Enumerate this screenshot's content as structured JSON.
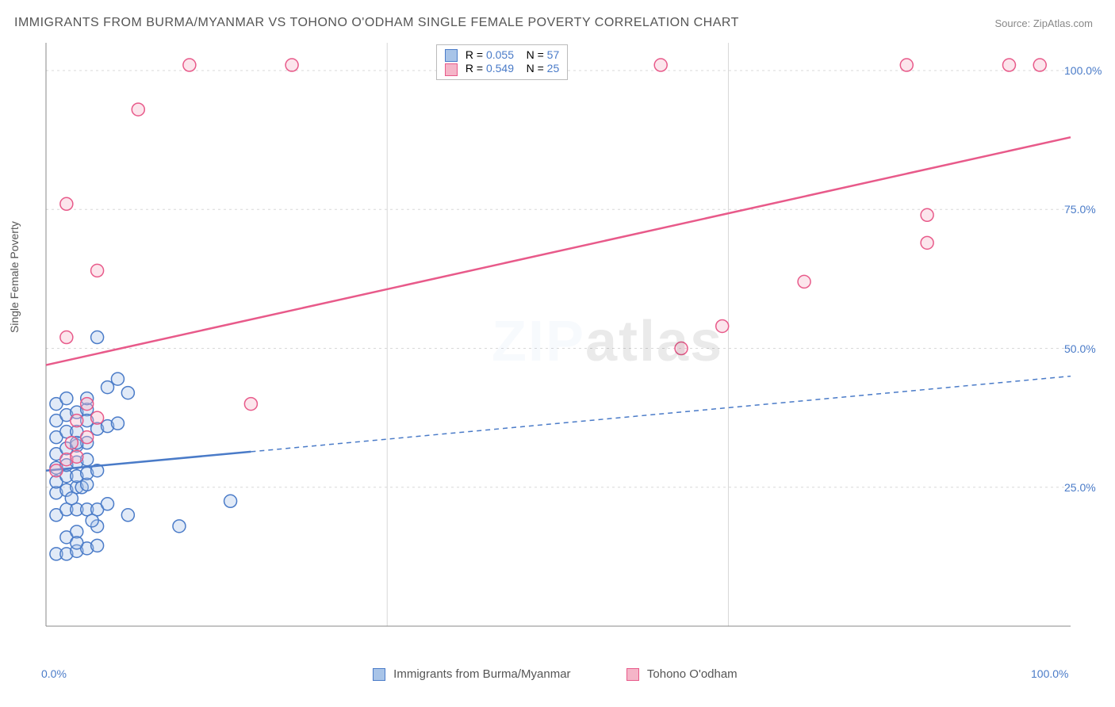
{
  "title": "IMMIGRANTS FROM BURMA/MYANMAR VS TOHONO O'ODHAM SINGLE FEMALE POVERTY CORRELATION CHART",
  "source": "Source: ZipAtlas.com",
  "ylabel": "Single Female Poverty",
  "watermark": "ZIPatlas",
  "chart": {
    "type": "scatter",
    "xlim": [
      0,
      100
    ],
    "ylim": [
      0,
      105
    ],
    "x_ticks": [
      0,
      100
    ],
    "x_tick_labels": [
      "0.0%",
      "100.0%"
    ],
    "y_ticks": [
      25,
      50,
      75,
      100
    ],
    "y_tick_labels": [
      "25.0%",
      "50.0%",
      "75.0%",
      "100.0%"
    ],
    "grid_color": "#d8d8d8",
    "axis_color": "#888888",
    "background_color": "#ffffff",
    "tick_label_color": "#4a7bc8",
    "marker_radius": 8,
    "marker_stroke_width": 1.5,
    "marker_fill_opacity": 0.35,
    "series": [
      {
        "name": "Immigrants from Burma/Myanmar",
        "color": "#4a7bc8",
        "fill": "#a8c4e8",
        "R": "0.055",
        "N": "57",
        "trend": {
          "x0": 0,
          "y0": 28,
          "x1": 100,
          "y1": 45,
          "solid_until_x": 20,
          "width": 2.5
        },
        "points": [
          [
            1,
            13
          ],
          [
            2,
            13
          ],
          [
            3,
            13.5
          ],
          [
            4,
            14
          ],
          [
            5,
            14.5
          ],
          [
            2,
            16
          ],
          [
            3,
            17
          ],
          [
            5,
            18
          ],
          [
            13,
            18
          ],
          [
            1,
            20
          ],
          [
            2,
            21
          ],
          [
            3,
            21
          ],
          [
            4,
            21
          ],
          [
            5,
            21
          ],
          [
            6,
            22
          ],
          [
            18,
            22.5
          ],
          [
            1,
            24
          ],
          [
            2,
            24.5
          ],
          [
            3,
            25
          ],
          [
            3.5,
            25
          ],
          [
            4,
            25.5
          ],
          [
            1,
            26
          ],
          [
            2,
            27
          ],
          [
            3,
            27
          ],
          [
            4,
            27.5
          ],
          [
            5,
            28
          ],
          [
            1,
            28.5
          ],
          [
            2,
            29
          ],
          [
            3,
            29.5
          ],
          [
            4,
            30
          ],
          [
            8,
            20
          ],
          [
            1,
            31
          ],
          [
            2,
            32
          ],
          [
            3,
            32.5
          ],
          [
            4,
            33
          ],
          [
            1,
            34
          ],
          [
            2,
            35
          ],
          [
            3,
            35
          ],
          [
            5,
            35.5
          ],
          [
            6,
            36
          ],
          [
            7,
            36.5
          ],
          [
            1,
            37
          ],
          [
            2,
            38
          ],
          [
            3,
            38.5
          ],
          [
            4,
            39
          ],
          [
            1,
            40
          ],
          [
            2,
            41
          ],
          [
            4,
            41
          ],
          [
            8,
            42
          ],
          [
            6,
            43
          ],
          [
            7,
            44.5
          ],
          [
            5,
            52
          ],
          [
            3,
            33
          ],
          [
            2.5,
            23
          ],
          [
            4.5,
            19
          ],
          [
            3,
            15
          ],
          [
            4,
            37
          ]
        ]
      },
      {
        "name": "Tohono O'odham",
        "color": "#e85a8a",
        "fill": "#f5b5c8",
        "R": "0.549",
        "N": "25",
        "trend": {
          "x0": 0,
          "y0": 47,
          "x1": 100,
          "y1": 88,
          "solid_until_x": 100,
          "width": 2.5
        },
        "points": [
          [
            1,
            28
          ],
          [
            2,
            30
          ],
          [
            3,
            30.5
          ],
          [
            2.5,
            33
          ],
          [
            4,
            34
          ],
          [
            3,
            37
          ],
          [
            5,
            37.5
          ],
          [
            4,
            40
          ],
          [
            2,
            52
          ],
          [
            5,
            64
          ],
          [
            2,
            76
          ],
          [
            9,
            93
          ],
          [
            14,
            101
          ],
          [
            24,
            101
          ],
          [
            20,
            40
          ],
          [
            60,
            101
          ],
          [
            62,
            50
          ],
          [
            66,
            54
          ],
          [
            74,
            62
          ],
          [
            86,
            74
          ],
          [
            86,
            69
          ],
          [
            84,
            101
          ],
          [
            94,
            101
          ],
          [
            97,
            101
          ],
          [
            45,
            101
          ]
        ]
      }
    ]
  },
  "legend_top": {
    "rows": [
      {
        "swatch_fill": "#a8c4e8",
        "swatch_border": "#4a7bc8",
        "r_label": "R =",
        "r_val": "0.055",
        "n_label": "N =",
        "n_val": "57"
      },
      {
        "swatch_fill": "#f5b5c8",
        "swatch_border": "#e85a8a",
        "r_label": "R =",
        "r_val": "0.549",
        "n_label": "N =",
        "n_val": "25"
      }
    ]
  },
  "legend_bottom": [
    {
      "swatch_fill": "#a8c4e8",
      "swatch_border": "#4a7bc8",
      "label": "Immigrants from Burma/Myanmar"
    },
    {
      "swatch_fill": "#f5b5c8",
      "swatch_border": "#e85a8a",
      "label": "Tohono O'odham"
    }
  ]
}
